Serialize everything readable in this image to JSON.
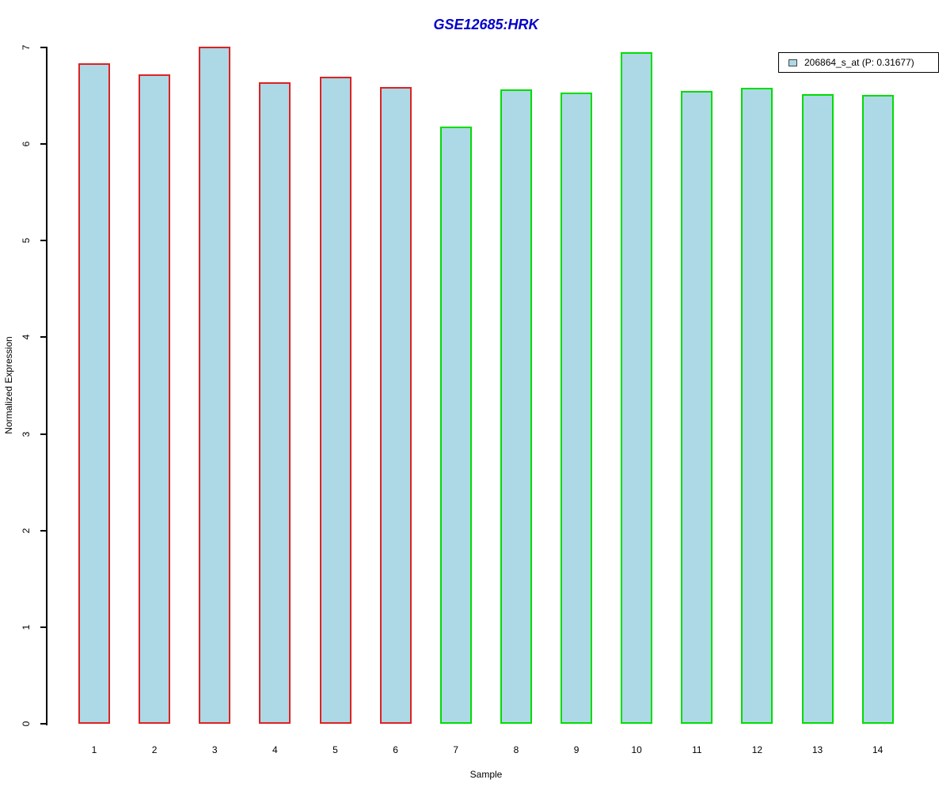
{
  "chart_data": {
    "type": "bar",
    "title": "GSE12685:HRK",
    "xlabel": "Sample",
    "ylabel": "Normalized Expression",
    "categories": [
      "1",
      "2",
      "3",
      "4",
      "5",
      "6",
      "7",
      "8",
      "9",
      "10",
      "11",
      "12",
      "13",
      "14"
    ],
    "series": [
      {
        "name": "206864_s_at (P: 0.31677)",
        "values": [
          6.84,
          6.72,
          7.01,
          6.64,
          6.7,
          6.59,
          6.18,
          6.57,
          6.53,
          6.95,
          6.55,
          6.58,
          6.52,
          6.51
        ]
      }
    ],
    "ylim": [
      0,
      7
    ],
    "yticks": [
      0,
      1,
      2,
      3,
      4,
      5,
      6,
      7
    ],
    "grid": false,
    "legend_position": "top-right",
    "bar_fill": "#ADD8E6",
    "bar_border_colors": [
      "#DD2222",
      "#DD2222",
      "#DD2222",
      "#DD2222",
      "#DD2222",
      "#DD2222",
      "#00DD00",
      "#00DD00",
      "#00DD00",
      "#00DD00",
      "#00DD00",
      "#00DD00",
      "#00DD00",
      "#00DD00"
    ]
  },
  "colors": {
    "title_text": "#0000CC",
    "axis": "#000000",
    "group1_border": "#DD2222",
    "group2_border": "#00DD00",
    "bar_fill": "#ADD8E6",
    "legend_swatch_border": "#444444",
    "background": "#FFFFFF"
  }
}
